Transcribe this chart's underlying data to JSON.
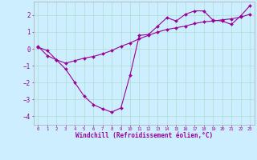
{
  "xlabel": "Windchill (Refroidissement éolien,°C)",
  "bg_color": "#cceeff",
  "line_color": "#990099",
  "grid_color": "#aaddcc",
  "xlim": [
    -0.5,
    23.5
  ],
  "ylim": [
    -4.5,
    2.8
  ],
  "xticks": [
    0,
    1,
    2,
    3,
    4,
    5,
    6,
    7,
    8,
    9,
    10,
    11,
    12,
    13,
    14,
    15,
    16,
    17,
    18,
    19,
    20,
    21,
    22,
    23
  ],
  "yticks": [
    -4,
    -3,
    -2,
    -1,
    0,
    1,
    2
  ],
  "line1_x": [
    0,
    1,
    2,
    3,
    4,
    5,
    6,
    7,
    8,
    9,
    10,
    11,
    12,
    13,
    14,
    15,
    16,
    17,
    18,
    19,
    20,
    21,
    22,
    23
  ],
  "line1_y": [
    0.15,
    -0.4,
    -0.65,
    -1.2,
    -2.0,
    -2.8,
    -3.3,
    -3.55,
    -3.75,
    -3.5,
    -1.55,
    0.8,
    0.85,
    1.35,
    1.85,
    1.65,
    2.05,
    2.25,
    2.25,
    1.7,
    1.65,
    1.45,
    1.95,
    2.55
  ],
  "line2_x": [
    0,
    1,
    2,
    3,
    4,
    5,
    6,
    7,
    8,
    9,
    10,
    11,
    12,
    13,
    14,
    15,
    16,
    17,
    18,
    19,
    20,
    21,
    22,
    23
  ],
  "line2_y": [
    0.1,
    -0.1,
    -0.65,
    -0.85,
    -0.7,
    -0.55,
    -0.45,
    -0.3,
    -0.1,
    0.15,
    0.35,
    0.6,
    0.8,
    1.0,
    1.15,
    1.25,
    1.35,
    1.5,
    1.6,
    1.65,
    1.72,
    1.78,
    1.88,
    2.05
  ]
}
